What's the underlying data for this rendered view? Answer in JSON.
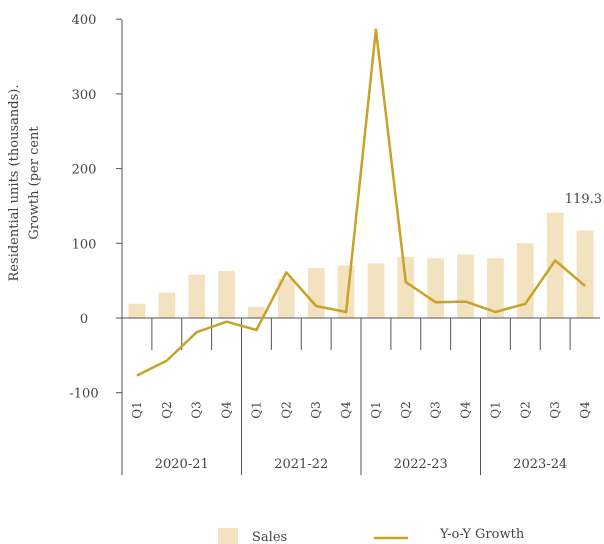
{
  "chart_data": {
    "type": "bar",
    "ylabel": "Residential units (thousands). Growth (per cent)",
    "ylabel_lines": [
      "Residential units (thousands).",
      "Growth (per cent"
    ],
    "yticks": [
      400,
      300,
      200,
      100,
      0,
      -100
    ],
    "ylim": [
      -100,
      400
    ],
    "categories": [
      "Q1",
      "Q2",
      "Q3",
      "Q4",
      "Q1",
      "Q2",
      "Q3",
      "Q4",
      "Q1",
      "Q2",
      "Q3",
      "Q4",
      "Q1",
      "Q2",
      "Q3",
      "Q4"
    ],
    "groups": [
      {
        "label": "2020-21",
        "count": 4
      },
      {
        "label": "2021-22",
        "count": 4
      },
      {
        "label": "2022-23",
        "count": 4
      },
      {
        "label": "2023-24",
        "count": 4
      }
    ],
    "series": [
      {
        "name": "Sales",
        "kind": "bar",
        "color": "#f2e2bf",
        "values": [
          19,
          34,
          58,
          63,
          15,
          52,
          67,
          70,
          73,
          82,
          80,
          85,
          80,
          100,
          141,
          117
        ]
      },
      {
        "name": "Y-o-Y Growth",
        "kind": "line",
        "color": "#c8a228",
        "values": [
          -77,
          -57,
          -19,
          -5,
          -16,
          61,
          16,
          8,
          386,
          48,
          21,
          22,
          8,
          19,
          77,
          43
        ]
      }
    ],
    "annotation": {
      "text": "119.3"
    },
    "legend_position": "bottom"
  }
}
